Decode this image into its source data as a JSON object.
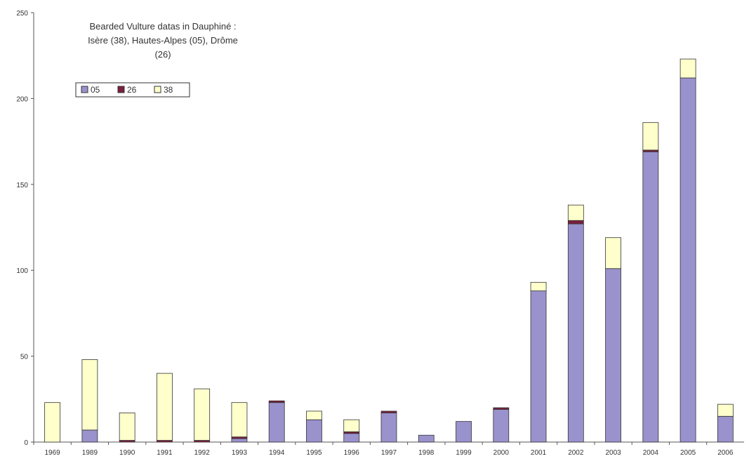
{
  "chart_data": {
    "type": "bar",
    "stacked": true,
    "title_lines": [
      "Bearded Vulture datas in Dauphiné :",
      "Isère (38), Hautes-Alpes (05), Drôme",
      "(26)"
    ],
    "categories": [
      "1969",
      "1989",
      "1990",
      "1991",
      "1992",
      "1993",
      "1994",
      "1995",
      "1996",
      "1997",
      "1998",
      "1999",
      "2000",
      "2001",
      "2002",
      "2003",
      "2004",
      "2005",
      "2006"
    ],
    "series": [
      {
        "name": "05",
        "color": "#9a92cc",
        "values": [
          0,
          7,
          0,
          0,
          0,
          2,
          23,
          13,
          5,
          17,
          4,
          12,
          19,
          88,
          127,
          101,
          169,
          212,
          15
        ]
      },
      {
        "name": "26",
        "color": "#7a1f3d",
        "values": [
          0,
          0,
          1,
          1,
          1,
          1,
          1,
          0,
          1,
          1,
          0,
          0,
          1,
          0,
          2,
          0,
          1,
          0,
          0
        ]
      },
      {
        "name": "38",
        "color": "#ffffcc",
        "values": [
          23,
          41,
          16,
          39,
          30,
          20,
          0,
          5,
          7,
          0,
          0,
          0,
          0,
          5,
          9,
          18,
          16,
          11,
          7
        ]
      }
    ],
    "yticks": [
      "0",
      "50",
      "100",
      "150",
      "200",
      "250"
    ],
    "ylim": [
      0,
      250
    ],
    "grid": false,
    "legend_position": "top-left"
  }
}
